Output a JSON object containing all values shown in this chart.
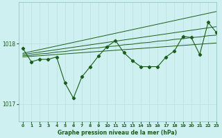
{
  "title": "Graphe pression niveau de la mer (hPa)",
  "background_color": "#cff0f0",
  "grid_color": "#b8e0e0",
  "line_color": "#1a5c1a",
  "text_color": "#1a5c1a",
  "xlim": [
    -0.5,
    23
  ],
  "ylim": [
    1016.72,
    1018.68
  ],
  "yticks": [
    1017,
    1018
  ],
  "xticks": [
    0,
    1,
    2,
    3,
    4,
    5,
    6,
    7,
    8,
    9,
    10,
    11,
    12,
    13,
    14,
    15,
    16,
    17,
    18,
    19,
    20,
    21,
    22,
    23
  ],
  "main_series": [
    1017.92,
    1017.7,
    1017.74,
    1017.74,
    1017.78,
    1017.35,
    1017.1,
    1017.45,
    1017.62,
    1017.8,
    1017.95,
    1018.05,
    1017.85,
    1017.72,
    1017.62,
    1017.62,
    1017.62,
    1017.78,
    1017.88,
    1018.12,
    1018.1,
    1017.82,
    1018.35,
    1018.18
  ],
  "smooth_lines": [
    [
      1017.78,
      1017.79,
      1017.8,
      1017.81,
      1017.82,
      1017.83,
      1017.84,
      1017.85,
      1017.86,
      1017.87,
      1017.88,
      1017.89,
      1017.9,
      1017.91,
      1017.92,
      1017.93,
      1017.94,
      1017.95,
      1017.96,
      1017.97,
      1017.98,
      1017.99,
      1018.0,
      1018.01
    ],
    [
      1017.8,
      1017.81,
      1017.83,
      1017.84,
      1017.86,
      1017.87,
      1017.89,
      1017.9,
      1017.92,
      1017.93,
      1017.95,
      1017.96,
      1017.98,
      1017.99,
      1018.01,
      1018.02,
      1018.04,
      1018.05,
      1018.07,
      1018.08,
      1018.1,
      1018.11,
      1018.13,
      1018.14
    ],
    [
      1017.82,
      1017.84,
      1017.86,
      1017.88,
      1017.9,
      1017.92,
      1017.94,
      1017.96,
      1017.98,
      1018.0,
      1018.02,
      1018.04,
      1018.06,
      1018.08,
      1018.1,
      1018.12,
      1018.14,
      1018.16,
      1018.18,
      1018.2,
      1018.22,
      1018.24,
      1018.26,
      1018.28
    ],
    [
      1017.84,
      1017.87,
      1017.9,
      1017.93,
      1017.96,
      1017.99,
      1018.02,
      1018.05,
      1018.08,
      1018.11,
      1018.14,
      1018.17,
      1018.2,
      1018.23,
      1018.26,
      1018.29,
      1018.32,
      1018.35,
      1018.38,
      1018.41,
      1018.44,
      1018.47,
      1018.5,
      1018.53
    ]
  ],
  "figsize": [
    3.2,
    2.0
  ],
  "dpi": 100
}
